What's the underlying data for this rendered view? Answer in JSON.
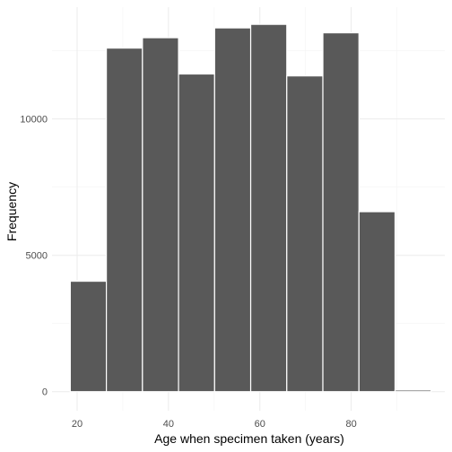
{
  "chart_data": {
    "type": "bar",
    "subtype": "histogram",
    "xlabel": "Age when specimen taken (years)",
    "ylabel": "Frequency",
    "xlim": [
      14.5,
      100.5
    ],
    "ylim": [
      -700,
      14100
    ],
    "x_ticks": [
      20,
      40,
      60,
      80
    ],
    "y_ticks": [
      0,
      5000,
      10000
    ],
    "bins": [
      {
        "start": 18.5,
        "end": 26.4,
        "value": 4050
      },
      {
        "start": 26.4,
        "end": 34.3,
        "value": 12600
      },
      {
        "start": 34.3,
        "end": 42.2,
        "value": 12980
      },
      {
        "start": 42.2,
        "end": 50.1,
        "value": 11650
      },
      {
        "start": 50.1,
        "end": 58.0,
        "value": 13340
      },
      {
        "start": 58.0,
        "end": 65.9,
        "value": 13470
      },
      {
        "start": 65.9,
        "end": 73.8,
        "value": 11580
      },
      {
        "start": 73.8,
        "end": 81.7,
        "value": 13160
      },
      {
        "start": 81.7,
        "end": 89.6,
        "value": 6600
      },
      {
        "start": 89.6,
        "end": 97.5,
        "value": 60
      }
    ],
    "bar_color": "#595959",
    "bar_outline": "#ffffff",
    "grid": true,
    "legend": "none"
  }
}
